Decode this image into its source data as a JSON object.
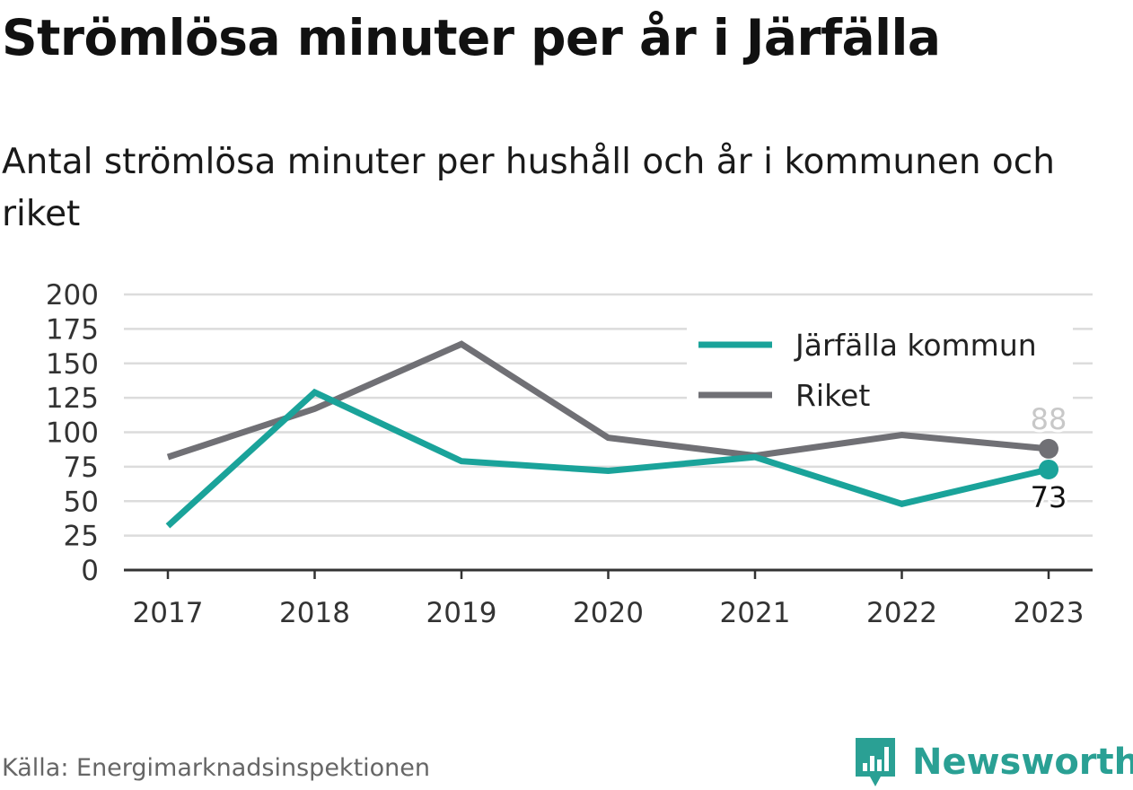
{
  "title": "Strömlösa minuter per år i Järfälla",
  "subtitle": "Antal strömlösa minuter per hushåll och år i kommunen och riket",
  "source": "Källa: Energimarknadsinspektionen",
  "brand": {
    "name": "Newsworthy",
    "icon": "bar-chart-badge-icon",
    "color": "#2aa094"
  },
  "chart_data": {
    "type": "line",
    "x": [
      "2017",
      "2018",
      "2019",
      "2020",
      "2021",
      "2022",
      "2023"
    ],
    "ylim": [
      0,
      200
    ],
    "yticks": [
      0,
      25,
      50,
      75,
      100,
      125,
      150,
      175,
      200
    ],
    "grid": true,
    "legend_position": "top-right",
    "series": [
      {
        "name": "Järfälla kommun",
        "color": "#1aa39a",
        "values": [
          32,
          129,
          79,
          72,
          82,
          48,
          73
        ],
        "end_label": "73"
      },
      {
        "name": "Riket",
        "color": "#707075",
        "values": [
          82,
          117,
          164,
          96,
          83,
          98,
          88
        ],
        "end_label": "88"
      }
    ]
  }
}
